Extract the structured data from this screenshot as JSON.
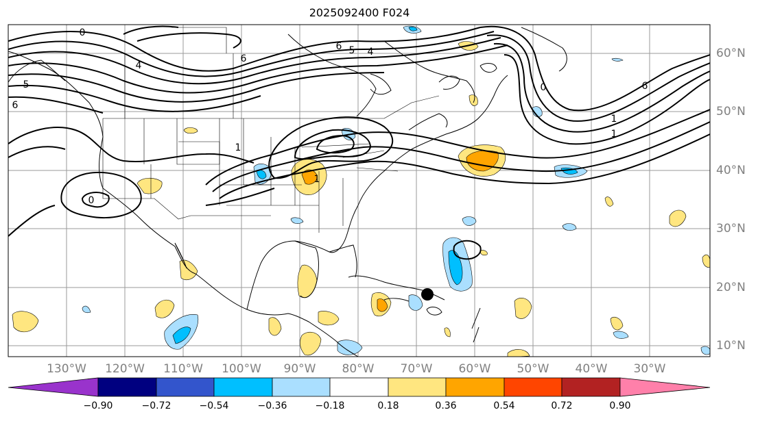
{
  "title": "2025092400 F024",
  "lon_labels": [
    "130°W",
    "120°W",
    "110°W",
    "100°W",
    "90°W",
    "80°W",
    "70°W",
    "60°W",
    "50°W",
    "40°W",
    "30°W"
  ],
  "lat_labels": [
    "60°N",
    "50°N",
    "40°N",
    "30°N",
    "20°N",
    "10°N"
  ],
  "colorbar": {
    "ticks": [
      "−0.90",
      "−0.72",
      "−0.54",
      "−0.36",
      "−0.18",
      "0.18",
      "0.36",
      "0.54",
      "0.72",
      "0.90"
    ],
    "colors": [
      "#9933cc",
      "#000080",
      "#3355cc",
      "#00bfff",
      "#aadfff",
      "#ffffff",
      "#ffe680",
      "#ffa500",
      "#ff4500",
      "#b22222",
      "#ff80aa"
    ]
  },
  "contour_labels": [
    "6",
    "5",
    "4",
    "4",
    "1",
    "1",
    "0",
    "0",
    "1",
    "6",
    "6",
    "5",
    "0",
    "1",
    "6"
  ],
  "marker": "storm-center-dot"
}
